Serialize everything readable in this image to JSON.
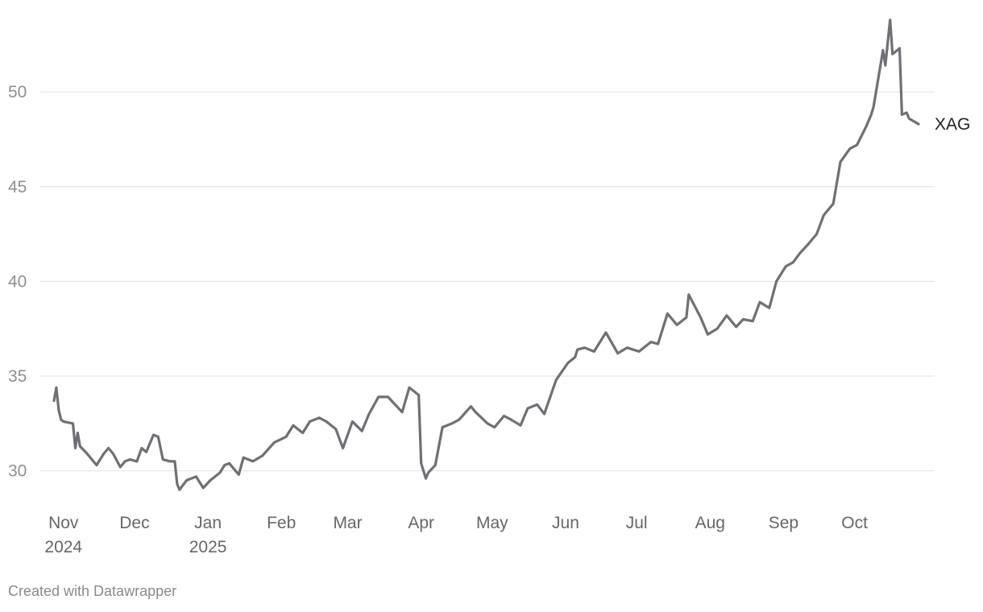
{
  "chart_data": {
    "type": "line",
    "ylim": [
      28.5,
      54
    ],
    "y_ticks": [
      30,
      35,
      40,
      45,
      50
    ],
    "x_ticks": [
      {
        "date": "2024-11-01",
        "label": "Nov",
        "sublabel": "2024"
      },
      {
        "date": "2024-12-01",
        "label": "Dec",
        "sublabel": ""
      },
      {
        "date": "2025-01-01",
        "label": "Jan",
        "sublabel": "2025"
      },
      {
        "date": "2025-02-01",
        "label": "Feb",
        "sublabel": ""
      },
      {
        "date": "2025-03-01",
        "label": "Mar",
        "sublabel": ""
      },
      {
        "date": "2025-04-01",
        "label": "Apr",
        "sublabel": ""
      },
      {
        "date": "2025-05-01",
        "label": "May",
        "sublabel": ""
      },
      {
        "date": "2025-06-01",
        "label": "Jun",
        "sublabel": ""
      },
      {
        "date": "2025-07-01",
        "label": "Jul",
        "sublabel": ""
      },
      {
        "date": "2025-08-01",
        "label": "Aug",
        "sublabel": ""
      },
      {
        "date": "2025-09-01",
        "label": "Sep",
        "sublabel": ""
      },
      {
        "date": "2025-10-01",
        "label": "Oct",
        "sublabel": ""
      }
    ],
    "grid": true,
    "series": [
      {
        "name": "XAG",
        "color": "#6e7075",
        "x": [
          "2024-10-28",
          "2024-10-29",
          "2024-10-30",
          "2024-10-31",
          "2024-11-01",
          "2024-11-05",
          "2024-11-06",
          "2024-11-07",
          "2024-11-08",
          "2024-11-11",
          "2024-11-13",
          "2024-11-15",
          "2024-11-18",
          "2024-11-20",
          "2024-11-22",
          "2024-11-25",
          "2024-11-27",
          "2024-11-29",
          "2024-12-02",
          "2024-12-04",
          "2024-12-06",
          "2024-12-09",
          "2024-12-11",
          "2024-12-13",
          "2024-12-16",
          "2024-12-18",
          "2024-12-19",
          "2024-12-20",
          "2024-12-23",
          "2024-12-27",
          "2024-12-30",
          "2025-01-02",
          "2025-01-06",
          "2025-01-08",
          "2025-01-10",
          "2025-01-14",
          "2025-01-16",
          "2025-01-20",
          "2025-01-24",
          "2025-01-29",
          "2025-02-03",
          "2025-02-06",
          "2025-02-10",
          "2025-02-13",
          "2025-02-17",
          "2025-02-20",
          "2025-02-24",
          "2025-02-27",
          "2025-03-03",
          "2025-03-07",
          "2025-03-10",
          "2025-03-14",
          "2025-03-18",
          "2025-03-24",
          "2025-03-27",
          "2025-03-31",
          "2025-04-01",
          "2025-04-03",
          "2025-04-04",
          "2025-04-07",
          "2025-04-10",
          "2025-04-14",
          "2025-04-17",
          "2025-04-22",
          "2025-04-24",
          "2025-04-29",
          "2025-05-02",
          "2025-05-06",
          "2025-05-09",
          "2025-05-13",
          "2025-05-16",
          "2025-05-20",
          "2025-05-23",
          "2025-05-28",
          "2025-06-02",
          "2025-06-05",
          "2025-06-06",
          "2025-06-09",
          "2025-06-13",
          "2025-06-18",
          "2025-06-23",
          "2025-06-27",
          "2025-07-02",
          "2025-07-07",
          "2025-07-10",
          "2025-07-14",
          "2025-07-18",
          "2025-07-22",
          "2025-07-23",
          "2025-07-28",
          "2025-07-31",
          "2025-08-04",
          "2025-08-08",
          "2025-08-12",
          "2025-08-15",
          "2025-08-19",
          "2025-08-22",
          "2025-08-26",
          "2025-08-29",
          "2025-09-02",
          "2025-09-05",
          "2025-09-08",
          "2025-09-11",
          "2025-09-15",
          "2025-09-18",
          "2025-09-22",
          "2025-09-25",
          "2025-09-29",
          "2025-10-02",
          "2025-10-06",
          "2025-10-08",
          "2025-10-09",
          "2025-10-13",
          "2025-10-14",
          "2025-10-16",
          "2025-10-17",
          "2025-10-20",
          "2025-10-21",
          "2025-10-23",
          "2025-10-24",
          "2025-10-28"
        ],
        "values": [
          33.7,
          34.4,
          33.2,
          32.7,
          32.6,
          32.5,
          31.2,
          32.0,
          31.3,
          30.9,
          30.6,
          30.3,
          30.9,
          31.2,
          30.9,
          30.2,
          30.5,
          30.6,
          30.5,
          31.2,
          31.0,
          31.9,
          31.8,
          30.6,
          30.5,
          30.5,
          29.3,
          29.0,
          29.5,
          29.7,
          29.1,
          29.5,
          29.9,
          30.3,
          30.4,
          29.8,
          30.7,
          30.5,
          30.8,
          31.5,
          31.8,
          32.4,
          32.0,
          32.6,
          32.8,
          32.6,
          32.2,
          31.2,
          32.6,
          32.1,
          33.0,
          33.9,
          33.9,
          33.1,
          34.4,
          34.0,
          30.4,
          29.6,
          29.9,
          30.3,
          32.3,
          32.5,
          32.7,
          33.4,
          33.1,
          32.5,
          32.3,
          32.9,
          32.7,
          32.4,
          33.3,
          33.5,
          33.0,
          34.8,
          35.7,
          36.0,
          36.4,
          36.5,
          36.3,
          37.3,
          36.2,
          36.5,
          36.3,
          36.8,
          36.7,
          38.3,
          37.7,
          38.1,
          39.3,
          38.1,
          37.2,
          37.5,
          38.2,
          37.6,
          38.0,
          37.9,
          38.9,
          38.6,
          40.0,
          40.8,
          41.0,
          41.5,
          41.9,
          42.5,
          43.5,
          44.1,
          46.3,
          47.0,
          47.2,
          48.2,
          48.8,
          49.2,
          52.2,
          51.4,
          53.8,
          52.0,
          52.3,
          48.8,
          48.9,
          48.6,
          48.3
        ]
      }
    ]
  },
  "credit": "Created with Datawrapper"
}
